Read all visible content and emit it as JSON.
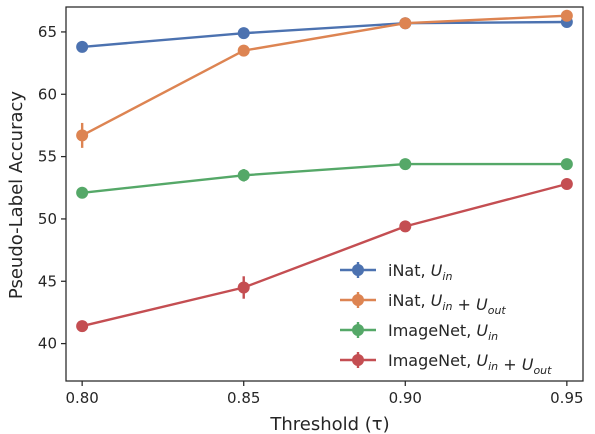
{
  "chart_data": {
    "type": "line",
    "title": "",
    "xlabel": "Threshold (τ)",
    "ylabel": "Pseudo-Label Accuracy",
    "x": [
      0.8,
      0.85,
      0.9,
      0.95
    ],
    "x_tick_labels": [
      "0.80",
      "0.85",
      "0.90",
      "0.95"
    ],
    "xlim": [
      0.795,
      0.955
    ],
    "ylim": [
      37,
      67
    ],
    "y_ticks": [
      40,
      45,
      50,
      55,
      60,
      65
    ],
    "y_tick_labels": [
      "40",
      "45",
      "50",
      "55",
      "60",
      "65"
    ],
    "grid": false,
    "legend_position": "bottom-right",
    "series": [
      {
        "name_base": "iNat, ",
        "name_math": "U_in",
        "color": "#4c72b0",
        "values": [
          63.8,
          64.9,
          65.7,
          65.8
        ],
        "errors": [
          0.2,
          0.3,
          0.2,
          0.2
        ]
      },
      {
        "name_base": "iNat, ",
        "name_math": "U_in + U_out",
        "color": "#dd8452",
        "values": [
          56.7,
          63.5,
          65.7,
          66.3
        ],
        "errors": [
          1.0,
          0.3,
          0.2,
          0.2
        ]
      },
      {
        "name_base": "ImageNet, ",
        "name_math": "U_in",
        "color": "#55a868",
        "values": [
          52.1,
          53.5,
          54.4,
          54.4
        ],
        "errors": [
          0.2,
          0.5,
          0.2,
          0.2
        ]
      },
      {
        "name_base": "ImageNet, ",
        "name_math": "U_in + U_out",
        "color": "#c44e52",
        "values": [
          41.4,
          44.5,
          49.4,
          52.8
        ],
        "errors": [
          0.2,
          0.9,
          0.2,
          0.2
        ]
      }
    ]
  }
}
